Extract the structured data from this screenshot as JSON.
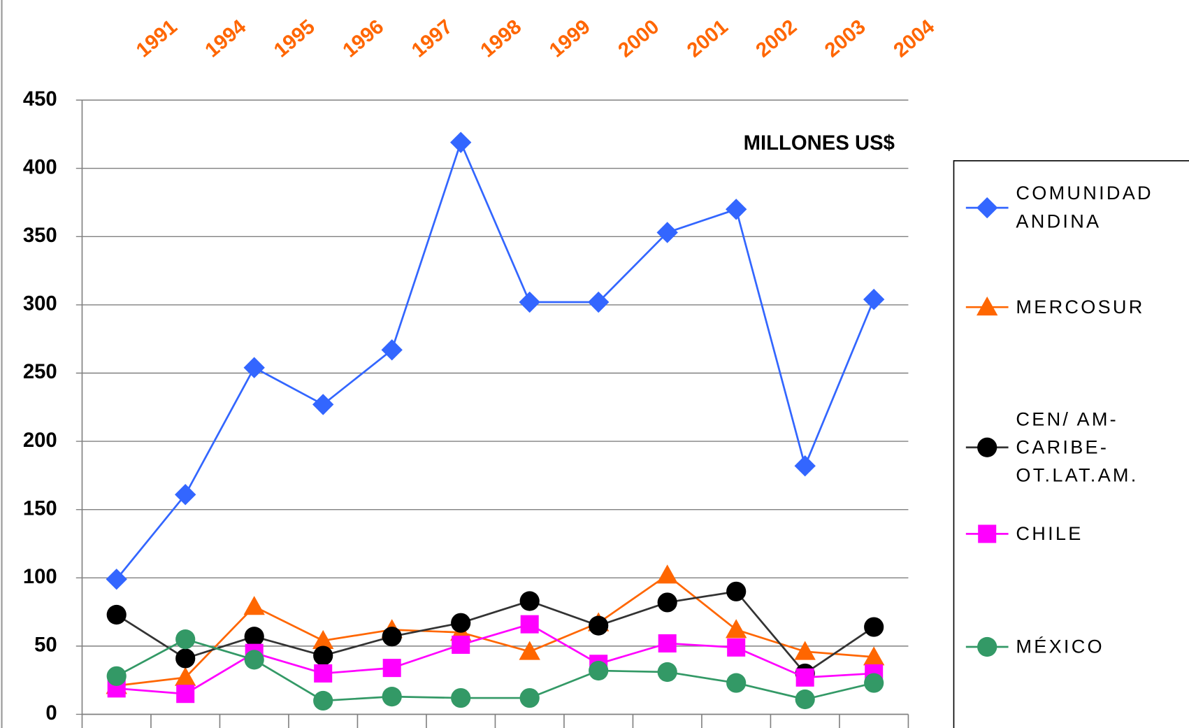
{
  "chart_data": {
    "type": "line",
    "title": "MILLONES US$",
    "categories": [
      "1991",
      "1994",
      "1995",
      "1996",
      "1997",
      "1998",
      "1999",
      "2000",
      "2001",
      "2002",
      "2003",
      "2004"
    ],
    "series": [
      {
        "name": "COMUNIDAD ANDINA",
        "color": "#3366ff",
        "marker": "diamond",
        "values": [
          99,
          161,
          254,
          227,
          267,
          419,
          302,
          302,
          353,
          370,
          182,
          304
        ]
      },
      {
        "name": "MERCOSUR",
        "color": "#ff6600",
        "marker": "triangle",
        "values": [
          21,
          27,
          79,
          54,
          62,
          60,
          46,
          67,
          102,
          62,
          46,
          42
        ]
      },
      {
        "name": "CEN/ AM- CARIBE- OT.LAT.AM.",
        "color": "#333333",
        "marker": "circle-black",
        "values": [
          73,
          41,
          57,
          43,
          57,
          67,
          83,
          65,
          82,
          90,
          30,
          64
        ]
      },
      {
        "name": "CHILE",
        "color": "#ff00ff",
        "marker": "square",
        "values": [
          19,
          15,
          45,
          30,
          34,
          51,
          66,
          37,
          52,
          49,
          27,
          30
        ]
      },
      {
        "name": "MÉXICO",
        "color": "#339966",
        "marker": "circle",
        "values": [
          28,
          55,
          40,
          10,
          13,
          12,
          12,
          32,
          31,
          23,
          11,
          23
        ]
      }
    ],
    "ylim": [
      0,
      450
    ],
    "yticks": [
      0,
      50,
      100,
      150,
      200,
      250,
      300,
      350,
      400,
      450
    ],
    "grid": true,
    "legend": "right"
  }
}
